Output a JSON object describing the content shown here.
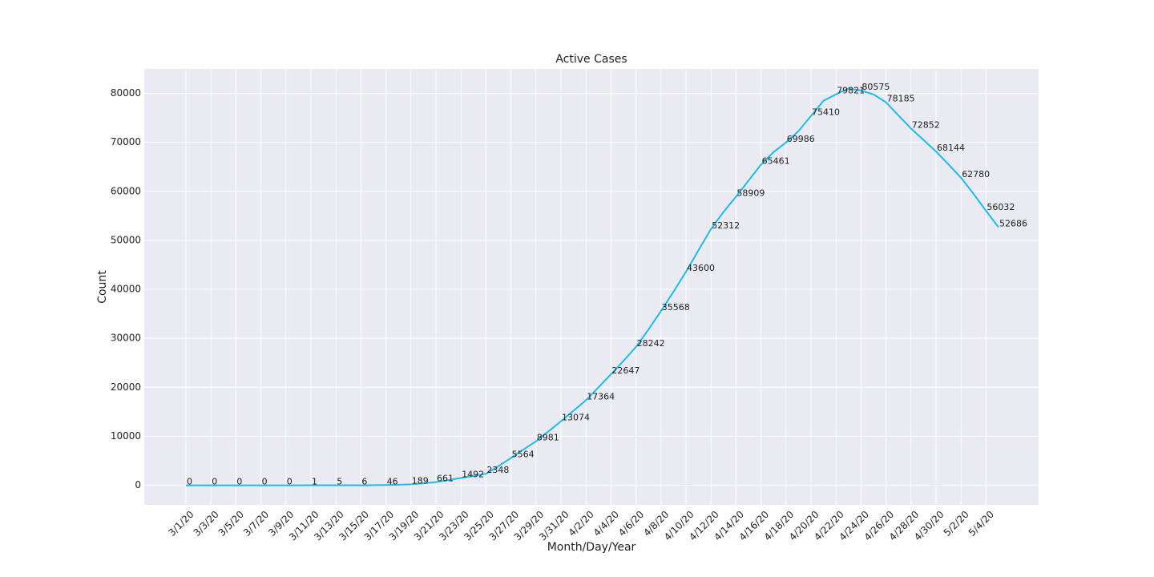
{
  "chart_data": {
    "type": "line",
    "title": "Active Cases",
    "x_label": "Month/Day/Year",
    "y_label": "Count",
    "categories": [
      "3/1/20",
      null,
      "3/3/20",
      null,
      "3/5/20",
      null,
      "3/7/20",
      null,
      "3/9/20",
      null,
      "3/11/20",
      null,
      "3/13/20",
      null,
      "3/15/20",
      null,
      "3/17/20",
      null,
      "3/19/20",
      null,
      "3/21/20",
      null,
      "3/23/20",
      null,
      "3/25/20",
      null,
      "3/27/20",
      null,
      "3/29/20",
      null,
      "3/31/20",
      null,
      "4/2/20",
      null,
      "4/4/20",
      null,
      "4/6/20",
      null,
      "4/8/20",
      null,
      "4/10/20",
      null,
      "4/12/20",
      null,
      "4/14/20",
      null,
      "4/16/20",
      null,
      "4/18/20",
      null,
      "4/20/20",
      null,
      "4/22/20",
      null,
      "4/24/20",
      null,
      "4/26/20",
      null,
      "4/28/20",
      null,
      "4/30/20",
      null,
      "5/2/20",
      null,
      "5/4/20",
      null
    ],
    "series": [
      {
        "name": "Active",
        "color": "#1cbcec",
        "values": [
          0,
          0,
          0,
          0,
          0,
          0,
          0,
          0,
          0,
          0,
          1,
          3,
          5,
          5,
          6,
          20,
          46,
          110,
          189,
          400,
          661,
          1050,
          1492,
          1900,
          2348,
          3900,
          5564,
          7300,
          8981,
          11000,
          13074,
          15200,
          17364,
          20000,
          22647,
          25400,
          28242,
          31800,
          35568,
          39500,
          43600,
          48000,
          52312,
          55800,
          58909,
          62200,
          65461,
          68000,
          69986,
          72300,
          75410,
          78500,
          79821,
          81000,
          80575,
          79800,
          78185,
          75500,
          72852,
          70500,
          68144,
          65500,
          62780,
          59500,
          56032,
          52686
        ],
        "value_labels": [
          "0",
          null,
          "0",
          null,
          "0",
          null,
          "0",
          null,
          "0",
          null,
          "1",
          null,
          "5",
          null,
          "6",
          null,
          "46",
          null,
          "189",
          null,
          "661",
          null,
          "1492",
          null,
          "2348",
          null,
          "5564",
          null,
          "8981",
          null,
          "13074",
          null,
          "17364",
          null,
          "22647",
          null,
          "28242",
          null,
          "35568",
          null,
          "43600",
          null,
          "52312",
          null,
          "58909",
          null,
          "65461",
          null,
          "69986",
          null,
          "75410",
          null,
          "79821",
          null,
          "80575",
          null,
          "78185",
          null,
          "72852",
          null,
          "68144",
          null,
          "62780",
          null,
          "56032",
          "52686"
        ]
      }
    ],
    "ylim": [
      -4000,
      85000
    ],
    "yticks": [
      0,
      10000,
      20000,
      30000,
      40000,
      50000,
      60000,
      70000,
      80000
    ],
    "grid": true
  }
}
